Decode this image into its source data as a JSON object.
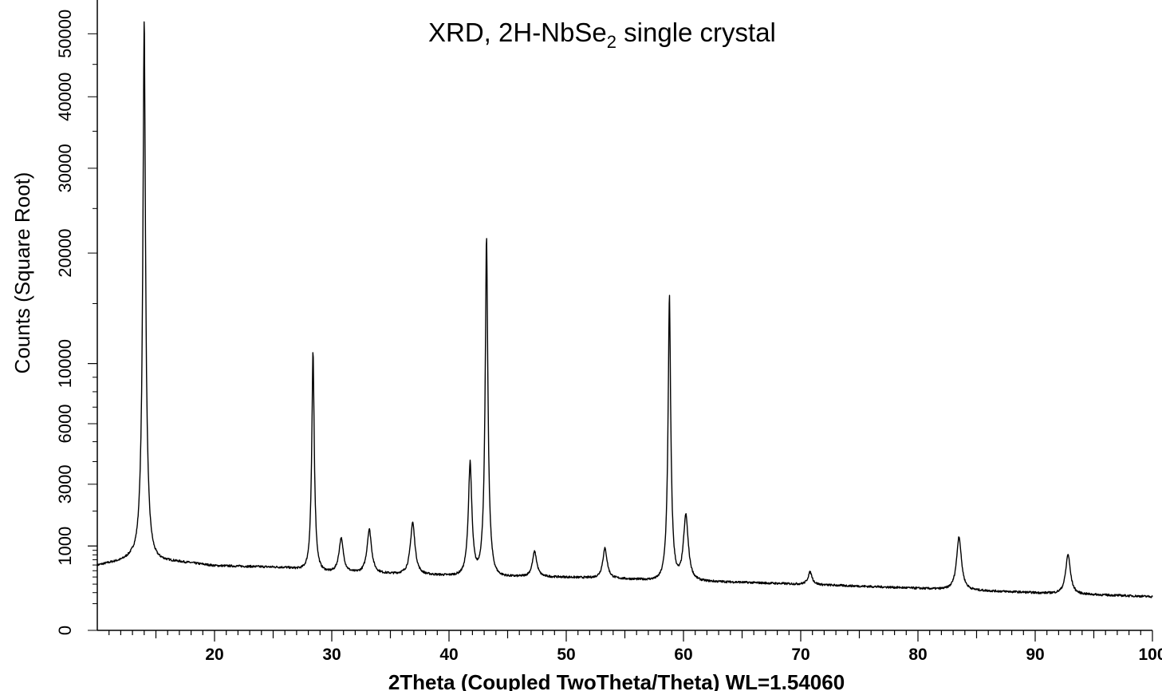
{
  "chart_data": {
    "type": "line",
    "title": {
      "prefix": "XRD, 2H-NbSe",
      "subscript": "2",
      "suffix": " single crystal"
    },
    "xlabel": "2Theta (Coupled TwoTheta/Theta) WL=1.54060",
    "ylabel": "Counts (Square Root)",
    "y_scale": "sqrt",
    "xlim": [
      10,
      100
    ],
    "ylim": [
      0,
      54000
    ],
    "x_ticks": [
      "20",
      "30",
      "40",
      "50",
      "60",
      "70",
      "80",
      "90",
      "100"
    ],
    "y_ticks": [
      "0",
      "1000",
      "3000",
      "6000",
      "10000",
      "20000",
      "30000",
      "40000",
      "50000"
    ],
    "grid": false,
    "legend": "none",
    "line_color": "#000000",
    "background": [
      [
        10.0,
        600
      ],
      [
        12.0,
        700
      ],
      [
        13.0,
        800
      ],
      [
        16.0,
        700
      ],
      [
        20.0,
        590
      ],
      [
        26.0,
        560
      ],
      [
        30.0,
        480
      ],
      [
        40.0,
        430
      ],
      [
        50.0,
        400
      ],
      [
        60.0,
        350
      ],
      [
        70.0,
        300
      ],
      [
        80.0,
        250
      ],
      [
        90.0,
        200
      ],
      [
        100.0,
        160
      ]
    ],
    "peaks": [
      {
        "x": 14.0,
        "y": 53000
      },
      {
        "x": 28.4,
        "y": 11000
      },
      {
        "x": 30.8,
        "y": 1200
      },
      {
        "x": 33.2,
        "y": 1450
      },
      {
        "x": 36.9,
        "y": 1650
      },
      {
        "x": 41.8,
        "y": 4000
      },
      {
        "x": 43.2,
        "y": 22000
      },
      {
        "x": 47.3,
        "y": 880
      },
      {
        "x": 53.3,
        "y": 950
      },
      {
        "x": 58.8,
        "y": 16000
      },
      {
        "x": 60.2,
        "y": 1900
      },
      {
        "x": 70.8,
        "y": 480
      },
      {
        "x": 83.5,
        "y": 1250
      },
      {
        "x": 92.8,
        "y": 820
      }
    ]
  }
}
